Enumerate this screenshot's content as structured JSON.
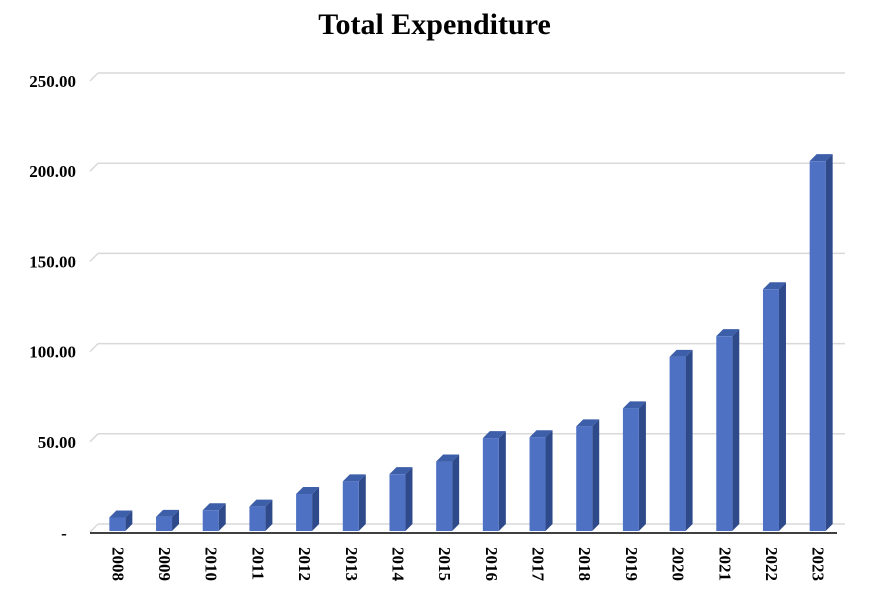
{
  "chart_data": {
    "type": "bar",
    "title": "Total Expenditure",
    "categories": [
      "2008",
      "2009",
      "2010",
      "2011",
      "2012",
      "2013",
      "2014",
      "2015",
      "2016",
      "2017",
      "2018",
      "2019",
      "2020",
      "2021",
      "2022",
      "2023"
    ],
    "series": [
      {
        "values": [
          7.5,
          7.8,
          11.5,
          13.5,
          20.5,
          27.5,
          31.5,
          38.5,
          51.5,
          52,
          58,
          68,
          96.5,
          108,
          134,
          205
        ]
      }
    ],
    "ylim": [
      0,
      250
    ],
    "yticks": [
      0,
      50,
      100,
      150,
      200,
      250
    ],
    "ytick_labels": [
      "-",
      "50.00",
      "100.00",
      "150.00",
      "200.00",
      "250.00"
    ],
    "grid": true,
    "colors": {
      "bar_front": "#4F71C4",
      "bar_side": "#2E4A8A",
      "bar_top": "#3D5EA8",
      "grid": "#D9D9D9",
      "axis": "#000000"
    }
  }
}
